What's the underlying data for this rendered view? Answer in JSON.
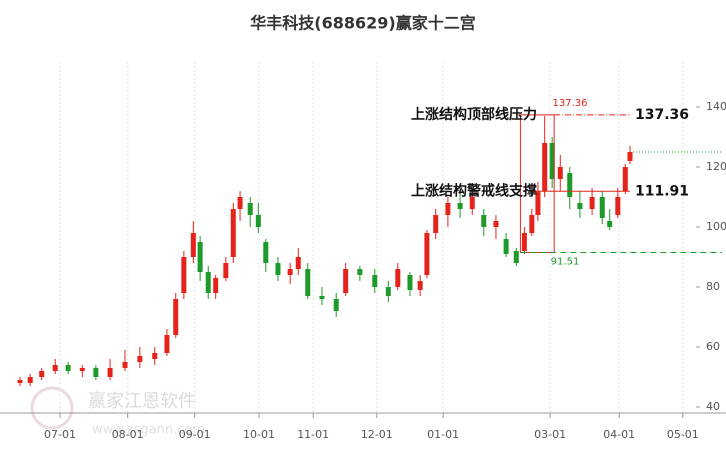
{
  "chart_data": {
    "type": "candlestick",
    "title": "华丰科技(688629)赢家十二宫",
    "x": [
      0.3,
      1.8,
      3.5,
      5.5,
      7.4,
      9.5,
      11.5,
      13.6,
      15.8,
      18.0,
      20.2,
      22.0,
      23.3,
      24.5,
      25.9,
      26.9,
      28.1,
      29.2,
      30.7,
      31.8,
      32.8,
      34.3,
      35.5,
      36.6,
      38.4,
      40.2,
      41.4,
      42.8,
      44.9,
      47.0,
      48.4,
      50.5,
      52.7,
      54.7,
      56.1,
      57.9,
      59.4,
      60.4,
      61.7,
      63.5,
      65.3,
      67.1,
      68.8,
      70.6,
      72.1,
      73.6,
      74.8,
      75.9,
      76.8,
      77.8,
      78.9,
      80.1,
      81.5,
      83.0,
      84.8,
      86.3,
      87.4,
      88.6,
      89.7,
      90.4
    ],
    "open": [
      48,
      48,
      50,
      52,
      54,
      52,
      53,
      50,
      53,
      55,
      56,
      58,
      64,
      78,
      90,
      95,
      85,
      78,
      83,
      90,
      106,
      108,
      104,
      95,
      88,
      84,
      86,
      86,
      77,
      76,
      78,
      86,
      84,
      80,
      80,
      84,
      79,
      84,
      98,
      104,
      108,
      106,
      104,
      100,
      96,
      92,
      92,
      98,
      104,
      112,
      128,
      116,
      118,
      108,
      106,
      110,
      102,
      104,
      112,
      122
    ],
    "high": [
      50,
      51,
      53,
      56,
      55,
      54,
      54,
      56,
      59,
      60,
      60,
      66,
      78,
      92,
      102,
      97,
      87,
      84,
      90,
      108,
      112,
      110,
      108,
      96,
      90,
      88,
      93,
      88,
      80,
      78,
      88,
      87,
      86,
      82,
      88,
      85,
      84,
      99,
      106,
      110,
      112,
      112,
      106,
      104,
      98,
      93,
      100,
      106,
      115,
      137,
      130,
      124,
      120,
      112,
      113,
      112,
      106,
      113,
      121,
      127
    ],
    "low": [
      47,
      47,
      49,
      51,
      51,
      50,
      49,
      49,
      52,
      53,
      54,
      57,
      63,
      76,
      88,
      82,
      76,
      76,
      82,
      88,
      102,
      100,
      98,
      85,
      82,
      81,
      84,
      76,
      74,
      70,
      77,
      82,
      78,
      75,
      79,
      77,
      77,
      83,
      96,
      100,
      103,
      104,
      97,
      96,
      90,
      87,
      91,
      97,
      102,
      110,
      113,
      112,
      106,
      103,
      104,
      101,
      99,
      103,
      111,
      121
    ],
    "close": [
      49,
      50,
      52,
      54,
      52,
      53,
      50,
      53,
      55,
      57,
      58,
      64,
      76,
      90,
      98,
      85,
      78,
      83,
      88,
      106,
      110,
      104,
      100,
      88,
      84,
      86,
      90,
      77,
      76,
      72,
      86,
      84,
      80,
      77,
      86,
      79,
      82,
      98,
      104,
      108,
      106,
      110,
      100,
      102,
      91,
      88,
      98,
      104,
      112,
      128,
      116,
      120,
      110,
      106,
      110,
      103,
      100,
      110,
      120,
      125
    ],
    "up_color": "#e5231b",
    "down_color": "#1d9a2a",
    "xlim": [
      0,
      100
    ],
    "xticks": [
      {
        "value": 6.2,
        "label": "07-01"
      },
      {
        "value": 16.2,
        "label": "08-01"
      },
      {
        "value": 26.1,
        "label": "09-01"
      },
      {
        "value": 35.6,
        "label": "10-01"
      },
      {
        "value": 43.6,
        "label": "11-01"
      },
      {
        "value": 53.0,
        "label": "12-01"
      },
      {
        "value": 62.8,
        "label": "01-01"
      },
      {
        "value": 78.6,
        "label": "03-01"
      },
      {
        "value": 88.8,
        "label": "04-01"
      },
      {
        "value": 98.2,
        "label": "05-01"
      }
    ],
    "ylim": [
      38,
      155
    ],
    "yticks": [
      40,
      60,
      80,
      100,
      120,
      140
    ],
    "grid": true,
    "annotations": {
      "resistance_label": "上涨结构顶部线压力",
      "resistance": 137.36,
      "support_label": "上涨结构警戒线支撑",
      "support": 111.91,
      "low": 91.51
    },
    "watermark": {
      "text": "赢家江恩软件",
      "url": "www.zsgann.com"
    }
  }
}
